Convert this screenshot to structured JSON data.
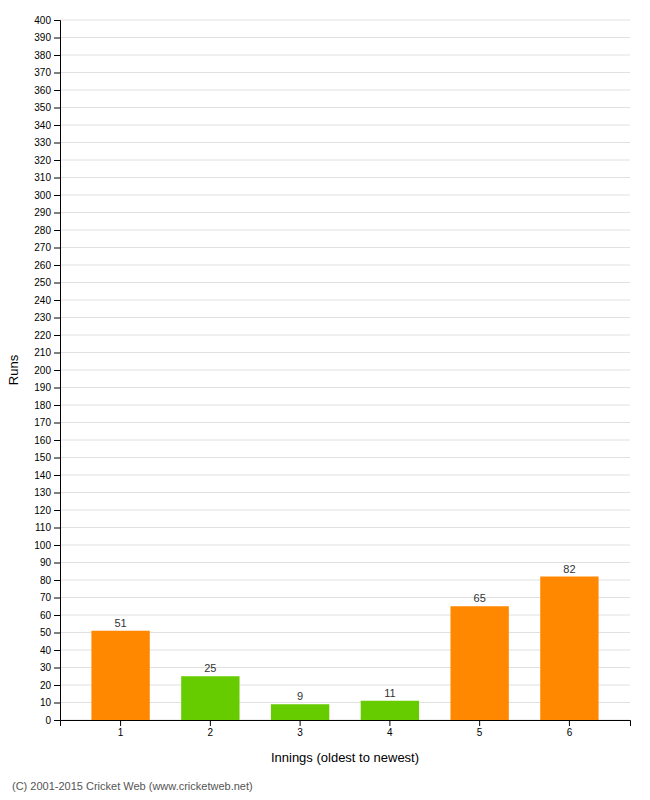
{
  "chart_data": {
    "type": "bar",
    "categories": [
      "1",
      "2",
      "3",
      "4",
      "5",
      "6"
    ],
    "values": [
      51,
      25,
      9,
      11,
      65,
      82
    ],
    "colors": [
      "#ff8800",
      "#66cc00",
      "#66cc00",
      "#66cc00",
      "#ff8800",
      "#ff8800"
    ],
    "y_label": "Runs",
    "x_label": "Innings (oldest to newest)",
    "annotations": [
      "(C) 2001-2015 Cricket Web (www.cricketweb.net)"
    ],
    "ylim": [
      0,
      400
    ],
    "yticks": [
      0,
      10,
      20,
      30,
      40,
      50,
      60,
      70,
      80,
      90,
      100,
      110,
      120,
      130,
      140,
      150,
      160,
      170,
      180,
      190,
      200,
      210,
      220,
      230,
      240,
      250,
      260,
      270,
      280,
      290,
      300,
      310,
      320,
      330,
      340,
      350,
      360,
      370,
      380,
      390,
      400
    ],
    "grid": true,
    "data_labels": true
  }
}
